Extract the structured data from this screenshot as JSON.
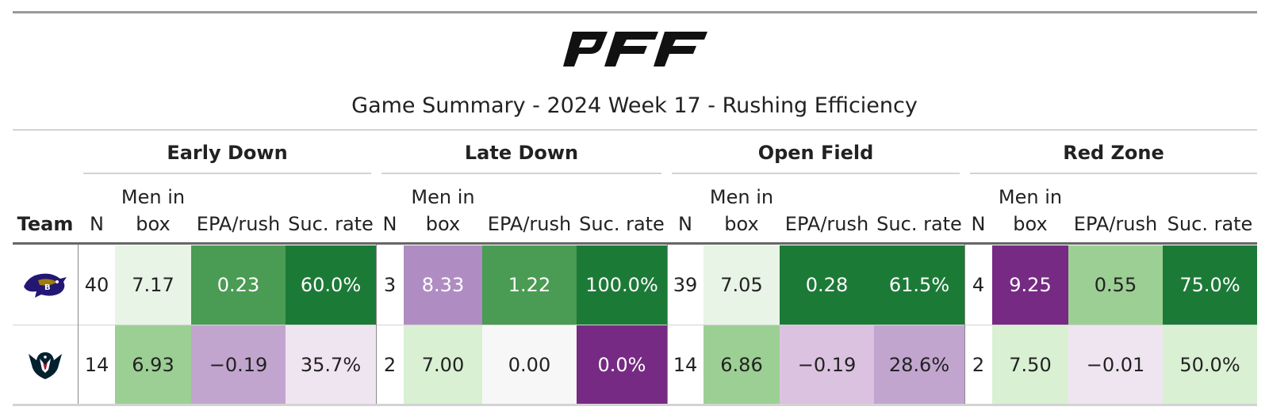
{
  "brand": {
    "logo_text": "PFF"
  },
  "title": "Game Summary - 2024 Week 17 - Rushing Efficiency",
  "groups": [
    {
      "label": "Early Down"
    },
    {
      "label": "Late Down"
    },
    {
      "label": "Open Field"
    },
    {
      "label": "Red Zone"
    }
  ],
  "columns": {
    "team": "Team",
    "n": "N",
    "men_in_box_1": "Men in",
    "men_in_box_2": "box",
    "epa": "EPA/rush",
    "suc": "Suc. rate"
  },
  "rows": [
    {
      "team_icon": "ravens-logo",
      "cells": [
        {
          "v": "40",
          "bg": "#ffffff",
          "dark": false
        },
        {
          "v": "7.17",
          "bg": "#e8f4e6",
          "dark": false
        },
        {
          "v": "0.23",
          "bg": "#4a9b53",
          "dark": true
        },
        {
          "v": "60.0%",
          "bg": "#1c7a37",
          "dark": true
        },
        {
          "v": "3",
          "bg": "#ffffff",
          "dark": false
        },
        {
          "v": "8.33",
          "bg": "#af8dc3",
          "dark": true
        },
        {
          "v": "1.22",
          "bg": "#4a9b53",
          "dark": true
        },
        {
          "v": "100.0%",
          "bg": "#1c7a37",
          "dark": true
        },
        {
          "v": "39",
          "bg": "#ffffff",
          "dark": false
        },
        {
          "v": "7.05",
          "bg": "#e8f4e6",
          "dark": false
        },
        {
          "v": "0.28",
          "bg": "#1c7a37",
          "dark": true
        },
        {
          "v": "61.5%",
          "bg": "#1c7a37",
          "dark": true
        },
        {
          "v": "4",
          "bg": "#ffffff",
          "dark": false
        },
        {
          "v": "9.25",
          "bg": "#762a83",
          "dark": true
        },
        {
          "v": "0.55",
          "bg": "#9ccf94",
          "dark": false
        },
        {
          "v": "75.0%",
          "bg": "#1c7a37",
          "dark": true
        }
      ]
    },
    {
      "team_icon": "texans-logo",
      "cells": [
        {
          "v": "14",
          "bg": "#ffffff",
          "dark": false
        },
        {
          "v": "6.93",
          "bg": "#9ccf94",
          "dark": false
        },
        {
          "v": "−0.19",
          "bg": "#c2a5cf",
          "dark": false
        },
        {
          "v": "35.7%",
          "bg": "#efe5f0",
          "dark": false
        },
        {
          "v": "2",
          "bg": "#ffffff",
          "dark": false
        },
        {
          "v": "7.00",
          "bg": "#d9f0d3",
          "dark": false
        },
        {
          "v": "0.00",
          "bg": "#f7f7f7",
          "dark": false
        },
        {
          "v": "0.0%",
          "bg": "#762a83",
          "dark": true
        },
        {
          "v": "14",
          "bg": "#ffffff",
          "dark": false
        },
        {
          "v": "6.86",
          "bg": "#9ccf94",
          "dark": false
        },
        {
          "v": "−0.19",
          "bg": "#dbc2e0",
          "dark": false
        },
        {
          "v": "28.6%",
          "bg": "#c2a5cf",
          "dark": false
        },
        {
          "v": "2",
          "bg": "#ffffff",
          "dark": false
        },
        {
          "v": "7.50",
          "bg": "#d9f0d3",
          "dark": false
        },
        {
          "v": "−0.01",
          "bg": "#efe5f0",
          "dark": false
        },
        {
          "v": "50.0%",
          "bg": "#d9f0d3",
          "dark": false
        }
      ]
    }
  ],
  "colors": {
    "dark_text": "#ffffff",
    "text": "#222222"
  }
}
